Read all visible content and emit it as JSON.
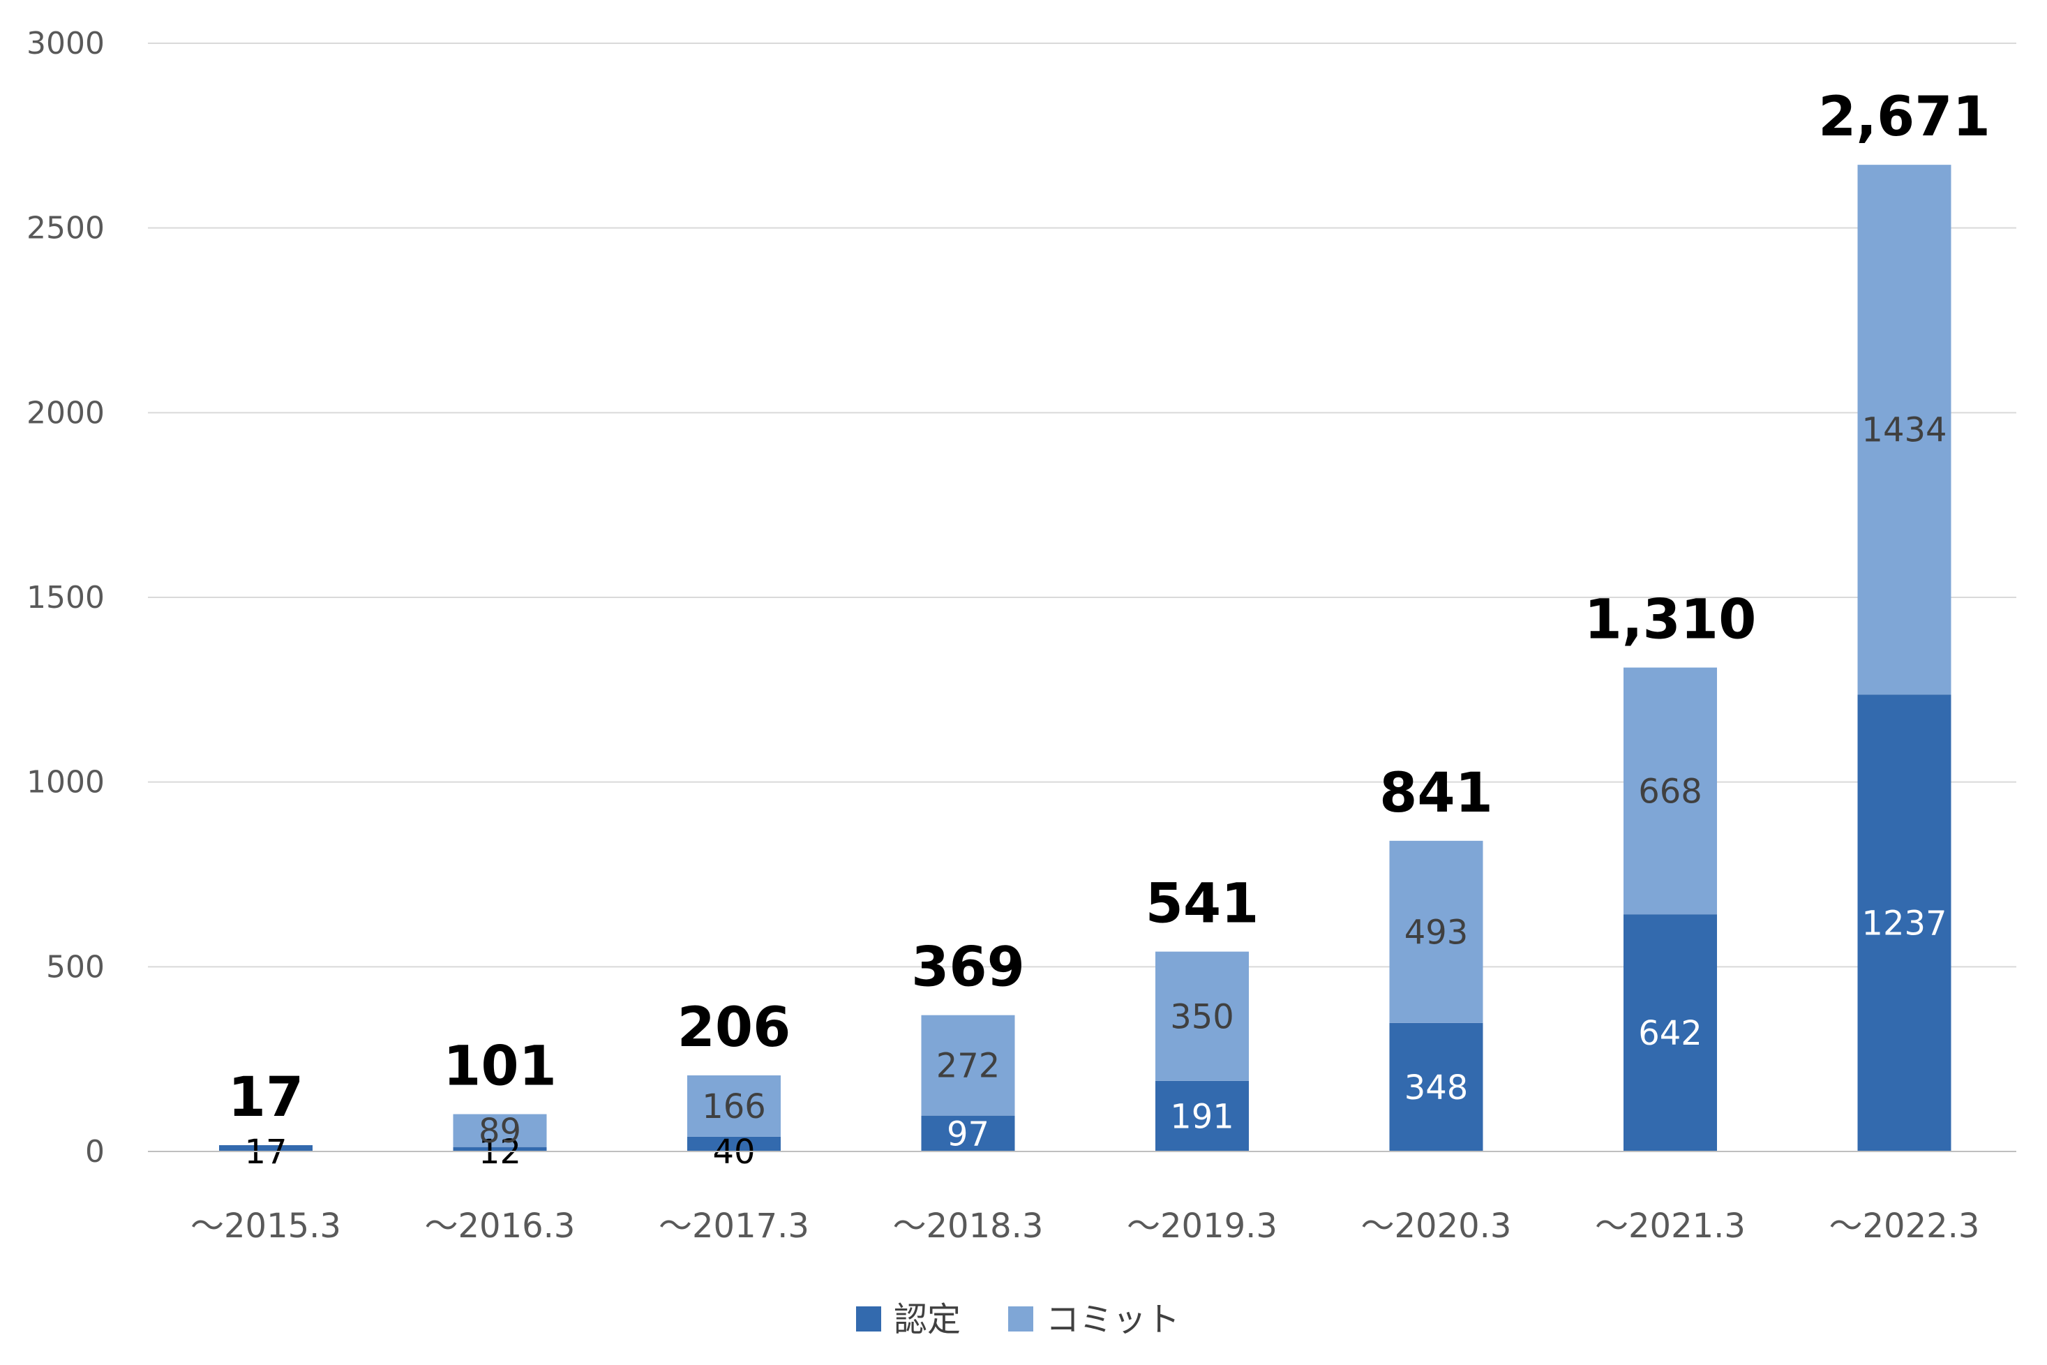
{
  "chart_data": {
    "type": "bar",
    "stacked": true,
    "categories": [
      "～2015.3",
      "～2016.3",
      "～2017.3",
      "～2018.3",
      "～2019.3",
      "～2020.3",
      "～2021.3",
      "～2022.3"
    ],
    "series": [
      {
        "name": "認定",
        "values": [
          17,
          12,
          40,
          97,
          191,
          348,
          642,
          1237
        ],
        "color": "#336AAE",
        "label_color": "#ffffff"
      },
      {
        "name": "コミット",
        "values": [
          0,
          89,
          166,
          272,
          350,
          493,
          668,
          1434
        ],
        "color": "#7FA6D6",
        "label_color": "#404040"
      }
    ],
    "segment_labels": [
      [
        "17",
        "12",
        "40",
        "97",
        "191",
        "348",
        "642",
        "1237"
      ],
      [
        "",
        "89",
        "166",
        "272",
        "350",
        "493",
        "668",
        "1434"
      ]
    ],
    "totals": [
      17,
      101,
      206,
      369,
      541,
      841,
      1310,
      2671
    ],
    "total_labels": [
      "17",
      "101",
      "206",
      "369",
      "541",
      "841",
      "1,310",
      "2,671"
    ],
    "y_ticks": [
      0,
      500,
      1000,
      1500,
      2000,
      2500,
      3000
    ],
    "ylim": [
      0,
      3000
    ],
    "grid": true,
    "legend_position": "bottom",
    "gridline_color": "#D9D9D9"
  }
}
